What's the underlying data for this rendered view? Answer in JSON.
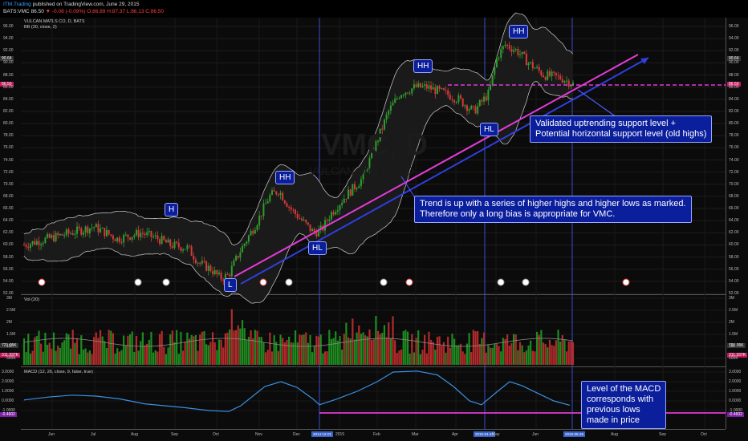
{
  "header": {
    "site": "ITM.Trading",
    "published": "published on TradingView.com, June 29, 2015",
    "ticker": "BATS:VMC",
    "price": "86.50",
    "change": "▼ -0.08 (-0.09%)",
    "ohlc": "O:86.89 H:87.37 L:86.13 C:86.50"
  },
  "chart": {
    "title": "VULCAN MATLS CO, D, BATS",
    "indicator": "BB (20, close, 2)",
    "watermark": "VMC, D",
    "watermark_sub": "VULCAN MATLS CO",
    "price_ticks": [
      "96.00",
      "94.00",
      "92.00",
      "90.00",
      "88.00",
      "86.00",
      "84.00",
      "82.00",
      "80.00",
      "78.00",
      "76.00",
      "74.00",
      "72.00",
      "70.00",
      "68.00",
      "66.00",
      "64.00",
      "62.00",
      "60.00",
      "58.00",
      "56.00",
      "54.00",
      "52.00"
    ],
    "price_tag_1": "90.64",
    "price_tag_2": "86.50",
    "volume_title": "Vol (20)",
    "volume_ticks": [
      "3M",
      "2.5M",
      "2M",
      "1.5M",
      "1M",
      "500K"
    ],
    "volume_tag_1": "721.05K",
    "volume_tag_2": "311.337K",
    "macd_title": "MACD (12, 26, close, 9, false, true)",
    "macd_ticks": [
      "3.0000",
      "2.0000",
      "1.0000",
      "0.0000",
      "-1.0000"
    ],
    "macd_tag": "-0.4602",
    "months": [
      "Jun",
      "Jul",
      "Aug",
      "Sep",
      "Oct",
      "Nov",
      "Dec",
      "2015",
      "Feb",
      "Mar",
      "Apr",
      "May",
      "Jun",
      "Aug",
      "Sep",
      "Oct"
    ],
    "date_labels": [
      "2014-12-01",
      "2015-04-22",
      "2015-06-26"
    ],
    "pattern_labels": [
      "H",
      "HH",
      "HL",
      "L",
      "HH",
      "HL",
      "HH"
    ],
    "callout_support": "Validated uptrending support level +\nPotential horizontal support level (old highs)",
    "callout_trend": "Trend is up with a series of higher highs and higher lows as marked.\nTherefore only a long bias is appropriate for VMC.",
    "callout_macd": "Level of the MACD\ncorresponds with\nprevious lows\nmade in price",
    "colors": {
      "up": "#2e9e2e",
      "down": "#d63a3a",
      "band": "#cfcfcf",
      "trend_blue": "#2f3fe0",
      "trend_pink": "#e23bd8",
      "macd": "#3b8fe0",
      "callout": "#0b1e9c"
    }
  }
}
